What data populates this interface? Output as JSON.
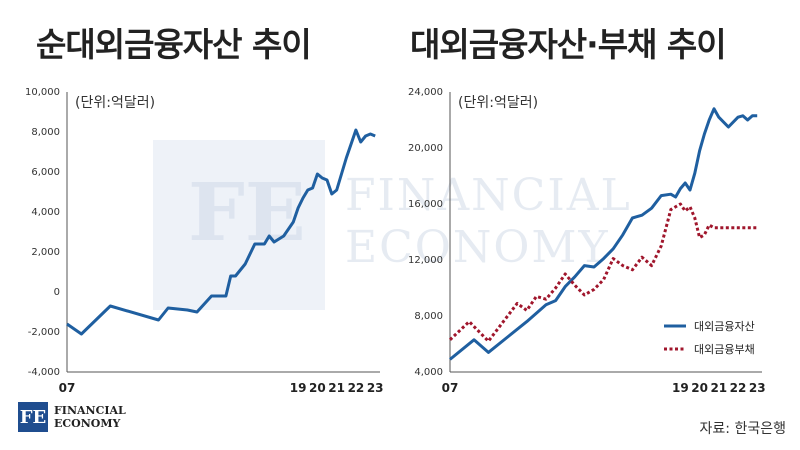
{
  "titles": {
    "left": "순대외금융자산 추이",
    "right": "대외금융자산·부채 추이"
  },
  "watermark": {
    "mark": "FE",
    "line1": "FINANCIAL",
    "line2": "ECONOMY"
  },
  "logo": {
    "mark": "FE",
    "line1": "FINANCIAL",
    "line2": "ECONOMY"
  },
  "source": "자료: 한국은행",
  "colors": {
    "asset": "#1f5fa0",
    "liability": "#a0162c"
  },
  "chart_data": [
    {
      "type": "line",
      "title": "순대외금융자산 추이",
      "unit_label": "(단위:억달러)",
      "ylim": [
        -4000,
        10000
      ],
      "y_ticks": [
        "10,000",
        "8,000",
        "6,000",
        "4,000",
        "2,000",
        "0",
        "-2,000",
        "-4,000"
      ],
      "x_ticks": [
        {
          "label": "07",
          "x": 2007
        },
        {
          "label": "19",
          "x": 2019
        },
        {
          "label": "20",
          "x": 2020
        },
        {
          "label": "21",
          "x": 2021
        },
        {
          "label": "22",
          "x": 2022
        },
        {
          "label": "23",
          "x": 2023
        }
      ],
      "xlim": [
        2007,
        2023.25
      ],
      "series": [
        {
          "key": "net",
          "x": [
            2007.0,
            2007.75,
            2009.25,
            2011.75,
            2012.25,
            2013.25,
            2013.75,
            2014.5,
            2015.0,
            2015.25,
            2015.5,
            2015.75,
            2016.25,
            2016.5,
            2016.75,
            2017.25,
            2017.5,
            2017.75,
            2018.25,
            2018.75,
            2019.0,
            2019.25,
            2019.5,
            2019.75,
            2020.0,
            2020.25,
            2020.5,
            2020.75,
            2021.0,
            2021.25,
            2021.5,
            2021.75,
            2022.0,
            2022.25,
            2022.5,
            2022.75,
            2023.0
          ],
          "values": [
            -1600,
            -2100,
            -700,
            -1400,
            -800,
            -900,
            -1000,
            -200,
            -200,
            -200,
            800,
            800,
            1400,
            1900,
            2400,
            2400,
            2800,
            2500,
            2800,
            3500,
            4200,
            4700,
            5100,
            5200,
            5900,
            5700,
            5600,
            4900,
            5100,
            5900,
            6700,
            7400,
            8100,
            7500,
            7800,
            7900,
            7800
          ]
        }
      ]
    },
    {
      "type": "line",
      "title": "대외금융자산·부채 추이",
      "unit_label": "(단위:억달러)",
      "ylim": [
        4000,
        24000
      ],
      "y_ticks": [
        "24,000",
        "20,000",
        "16,000",
        "12,000",
        "8,000",
        "4,000"
      ],
      "x_ticks": [
        {
          "label": "07",
          "x": 2007
        },
        {
          "label": "19",
          "x": 2019
        },
        {
          "label": "20",
          "x": 2020
        },
        {
          "label": "21",
          "x": 2021
        },
        {
          "label": "22",
          "x": 2022
        },
        {
          "label": "23",
          "x": 2023
        }
      ],
      "xlim": [
        2007,
        2023.25
      ],
      "legend": [
        "대외금융자산",
        "대외금융부채"
      ],
      "series": [
        {
          "key": "asset",
          "name": "대외금융자산",
          "style": "solid",
          "x": [
            2007.0,
            2008.25,
            2009.0,
            2010.0,
            2011.0,
            2012.0,
            2012.5,
            2013.0,
            2013.5,
            2014.0,
            2014.5,
            2015.0,
            2015.5,
            2016.0,
            2016.5,
            2017.0,
            2017.5,
            2018.0,
            2018.5,
            2018.75,
            2019.0,
            2019.25,
            2019.5,
            2019.75,
            2020.0,
            2020.25,
            2020.5,
            2020.75,
            2021.0,
            2021.5,
            2022.0,
            2022.25,
            2022.5,
            2022.75,
            2023.0
          ],
          "values": [
            4900,
            6300,
            5400,
            6500,
            7600,
            8800,
            9100,
            10100,
            10800,
            11600,
            11500,
            12100,
            12800,
            13800,
            15000,
            15200,
            15700,
            16600,
            16700,
            16500,
            17100,
            17500,
            17000,
            18200,
            19800,
            21000,
            22000,
            22800,
            22200,
            21500,
            22200,
            22300,
            22000,
            22300,
            22300
          ]
        },
        {
          "key": "liability",
          "name": "대외금융부채",
          "style": "dotted",
          "x": [
            2007.0,
            2008.0,
            2009.0,
            2010.0,
            2010.5,
            2011.0,
            2011.5,
            2012.0,
            2012.5,
            2013.0,
            2013.5,
            2014.0,
            2014.5,
            2015.0,
            2015.5,
            2016.0,
            2016.5,
            2017.0,
            2017.5,
            2018.0,
            2018.5,
            2019.0,
            2019.25,
            2019.5,
            2019.75,
            2020.0,
            2020.25,
            2020.5,
            2020.75,
            2021.0,
            2021.25,
            2021.5,
            2021.75,
            2022.0,
            2022.5,
            2023.0
          ],
          "values": [
            6300,
            7600,
            6200,
            8000,
            8900,
            8400,
            9400,
            9200,
            10000,
            11000,
            10200,
            9500,
            9900,
            10600,
            12100,
            11600,
            11300,
            12200,
            11600,
            13000,
            15600,
            16000,
            15500,
            15800,
            15000,
            13600,
            13800,
            14500,
            14300,
            14300,
            14300,
            14300,
            14300,
            14300,
            14300,
            14300
          ]
        }
      ]
    }
  ]
}
